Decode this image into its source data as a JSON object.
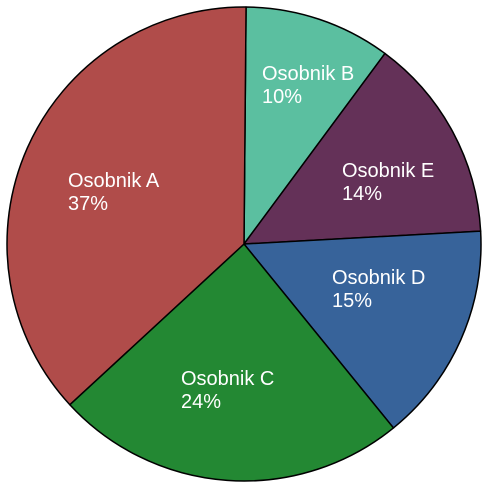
{
  "chart_data": {
    "type": "pie",
    "title": "",
    "legend": "none",
    "slices": [
      {
        "label": "Osobnik A",
        "value": 37,
        "display": "37%",
        "color": "#B04C4A"
      },
      {
        "label": "Osobnik B",
        "value": 10,
        "display": "10%",
        "color": "#5BBFA0"
      },
      {
        "label": "Osobnik E",
        "value": 14,
        "display": "14%",
        "color": "#643158"
      },
      {
        "label": "Osobnik D",
        "value": 15,
        "display": "15%",
        "color": "#37639A"
      },
      {
        "label": "Osobnik C",
        "value": 24,
        "display": "24%",
        "color": "#238833"
      }
    ]
  }
}
